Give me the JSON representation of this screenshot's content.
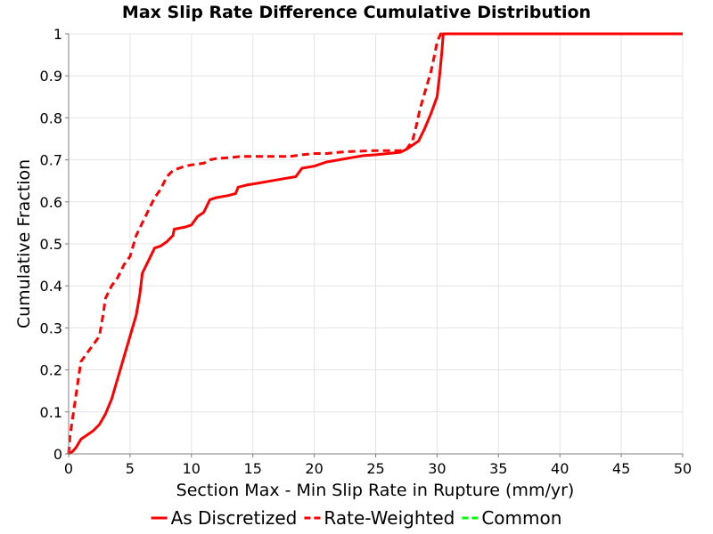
{
  "chart_data": {
    "type": "line",
    "title": "Max Slip Rate Difference Cumulative Distribution",
    "xlabel": "Section Max - Min Slip Rate in Rupture (mm/yr)",
    "ylabel": "Cumulative Fraction",
    "xlim": [
      0,
      50
    ],
    "ylim": [
      0,
      1
    ],
    "x_ticks": [
      "0",
      "5",
      "10",
      "15",
      "20",
      "25",
      "30",
      "35",
      "40",
      "45",
      "50"
    ],
    "y_ticks": [
      "0",
      "0.1",
      "0.2",
      "0.3",
      "0.4",
      "0.5",
      "0.6",
      "0.7",
      "0.8",
      "0.9",
      "1"
    ],
    "grid": true,
    "legend_position": "bottom",
    "series": [
      {
        "name": "As Discretized",
        "color": "#ff0000",
        "dash": "solid",
        "points": [
          [
            0,
            0
          ],
          [
            0.3,
            0.005
          ],
          [
            0.6,
            0.015
          ],
          [
            0.8,
            0.025
          ],
          [
            1.0,
            0.035
          ],
          [
            1.5,
            0.045
          ],
          [
            2.0,
            0.055
          ],
          [
            2.5,
            0.07
          ],
          [
            3.0,
            0.095
          ],
          [
            3.5,
            0.13
          ],
          [
            4.0,
            0.18
          ],
          [
            4.5,
            0.23
          ],
          [
            5.0,
            0.28
          ],
          [
            5.5,
            0.33
          ],
          [
            5.8,
            0.38
          ],
          [
            6.0,
            0.43
          ],
          [
            6.5,
            0.46
          ],
          [
            7.0,
            0.49
          ],
          [
            7.5,
            0.495
          ],
          [
            8.0,
            0.505
          ],
          [
            8.5,
            0.52
          ],
          [
            8.6,
            0.535
          ],
          [
            9.5,
            0.54
          ],
          [
            10.0,
            0.545
          ],
          [
            10.5,
            0.565
          ],
          [
            11.0,
            0.575
          ],
          [
            11.5,
            0.605
          ],
          [
            12.0,
            0.61
          ],
          [
            13.0,
            0.615
          ],
          [
            13.6,
            0.62
          ],
          [
            13.8,
            0.635
          ],
          [
            14.5,
            0.64
          ],
          [
            15.5,
            0.645
          ],
          [
            16.5,
            0.65
          ],
          [
            17.5,
            0.655
          ],
          [
            18.5,
            0.66
          ],
          [
            19.0,
            0.68
          ],
          [
            20.0,
            0.685
          ],
          [
            21.0,
            0.695
          ],
          [
            22.0,
            0.7
          ],
          [
            23.0,
            0.705
          ],
          [
            24.0,
            0.71
          ],
          [
            25.0,
            0.712
          ],
          [
            26.0,
            0.715
          ],
          [
            27.0,
            0.718
          ],
          [
            27.5,
            0.725
          ],
          [
            28.0,
            0.735
          ],
          [
            28.5,
            0.745
          ],
          [
            29.0,
            0.775
          ],
          [
            29.5,
            0.81
          ],
          [
            30.0,
            0.85
          ],
          [
            30.2,
            0.9
          ],
          [
            30.4,
            0.96
          ],
          [
            30.5,
            1.0
          ],
          [
            50,
            1.0
          ]
        ]
      },
      {
        "name": "Rate-Weighted",
        "color": "#ff0000",
        "dash": "dashed",
        "points": [
          [
            0,
            0
          ],
          [
            0.1,
            0.04
          ],
          [
            0.3,
            0.08
          ],
          [
            0.5,
            0.12
          ],
          [
            0.8,
            0.18
          ],
          [
            1.0,
            0.22
          ],
          [
            1.5,
            0.24
          ],
          [
            2.0,
            0.26
          ],
          [
            2.5,
            0.28
          ],
          [
            2.8,
            0.33
          ],
          [
            3.0,
            0.37
          ],
          [
            3.5,
            0.4
          ],
          [
            4.0,
            0.42
          ],
          [
            4.5,
            0.45
          ],
          [
            5.0,
            0.47
          ],
          [
            5.5,
            0.52
          ],
          [
            6.0,
            0.55
          ],
          [
            6.5,
            0.58
          ],
          [
            7.0,
            0.61
          ],
          [
            7.5,
            0.63
          ],
          [
            8.0,
            0.66
          ],
          [
            8.5,
            0.675
          ],
          [
            9.0,
            0.68
          ],
          [
            9.5,
            0.685
          ],
          [
            10.0,
            0.688
          ],
          [
            11.0,
            0.692
          ],
          [
            11.5,
            0.7
          ],
          [
            12.0,
            0.703
          ],
          [
            13.0,
            0.705
          ],
          [
            14.0,
            0.708
          ],
          [
            16.0,
            0.708
          ],
          [
            18.0,
            0.708
          ],
          [
            19.0,
            0.712
          ],
          [
            20.0,
            0.715
          ],
          [
            21.0,
            0.715
          ],
          [
            22.0,
            0.718
          ],
          [
            23.0,
            0.72
          ],
          [
            25.0,
            0.722
          ],
          [
            27.0,
            0.722
          ],
          [
            27.5,
            0.725
          ],
          [
            28.0,
            0.745
          ],
          [
            28.3,
            0.78
          ],
          [
            28.6,
            0.82
          ],
          [
            29.0,
            0.86
          ],
          [
            29.5,
            0.91
          ],
          [
            29.8,
            0.95
          ],
          [
            30.0,
            0.98
          ],
          [
            30.3,
            1.0
          ],
          [
            50,
            1.0
          ]
        ]
      },
      {
        "name": "Common",
        "color": "#00ff00",
        "dash": "dashed",
        "points": []
      }
    ]
  }
}
